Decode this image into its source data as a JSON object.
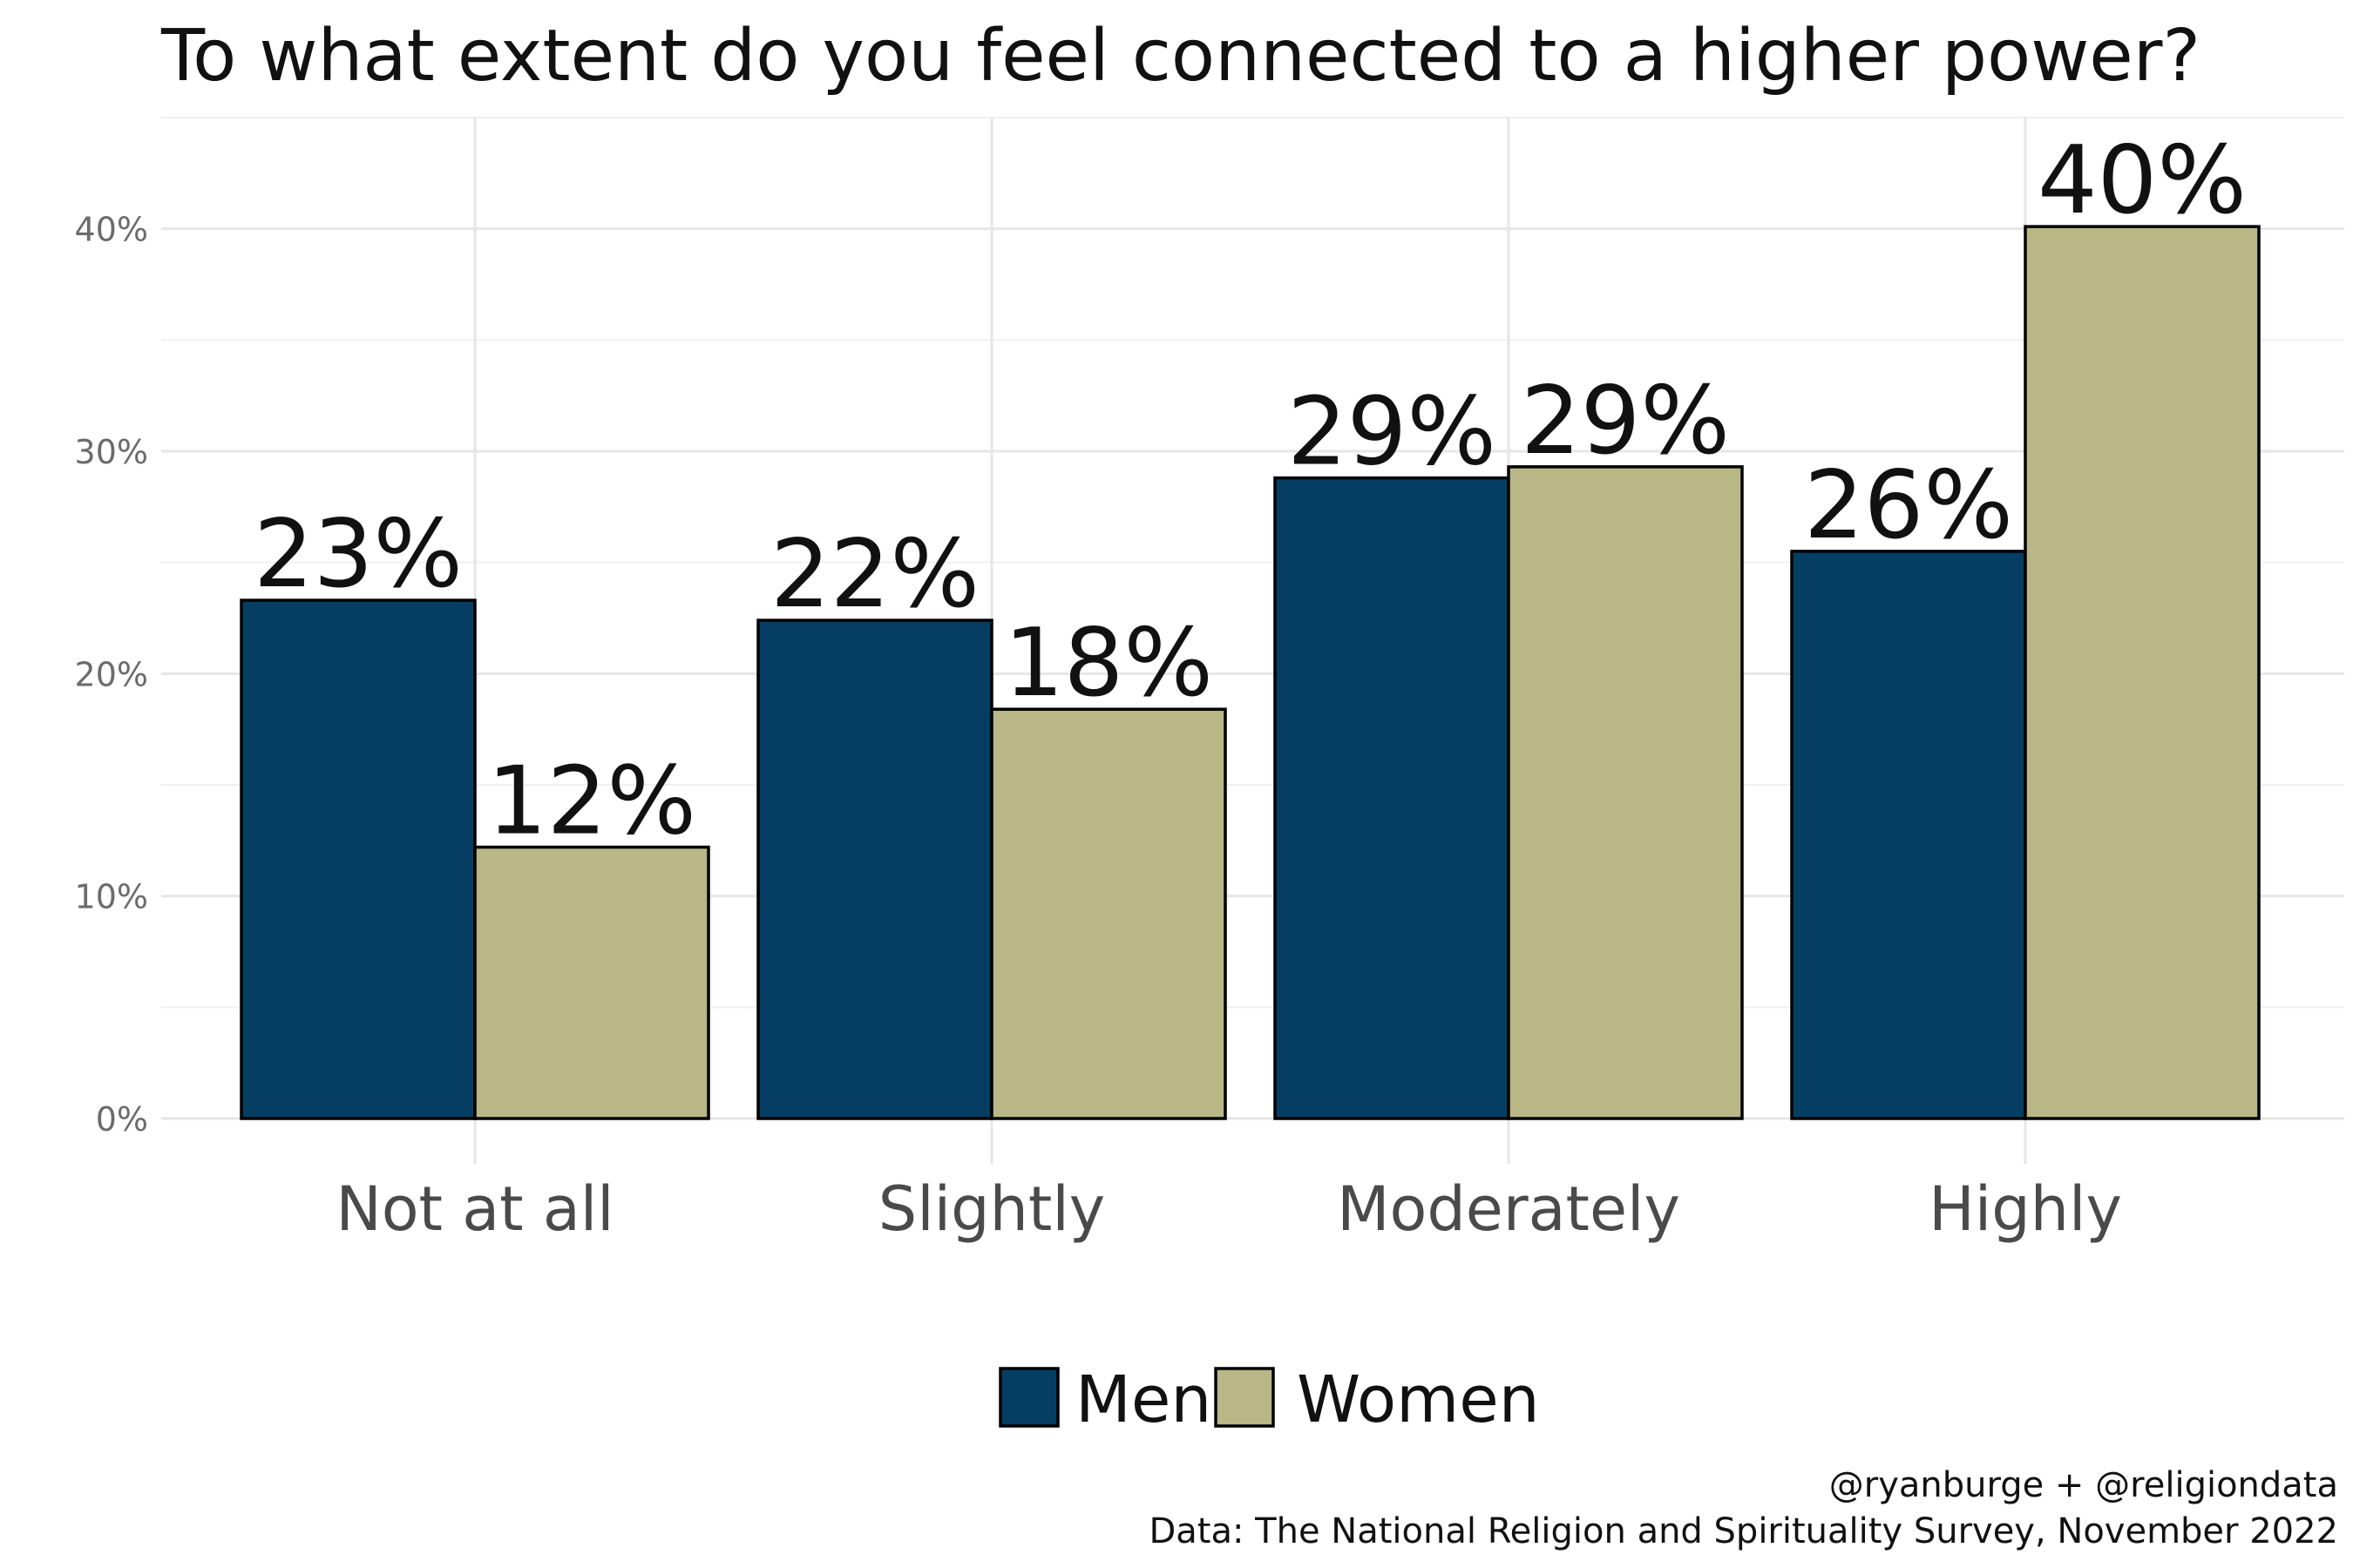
{
  "chart_data": {
    "type": "bar",
    "title": "To what extent do you feel connected to a higher power?",
    "xlabel": "",
    "ylabel": "",
    "categories": [
      "Not at all",
      "Slightly",
      "Moderately",
      "Highly"
    ],
    "series": [
      {
        "name": "Men",
        "color": "#053e62",
        "values": [
          0.233,
          0.224,
          0.288,
          0.255
        ],
        "labels": [
          "23%",
          "22%",
          "29%",
          "26%"
        ]
      },
      {
        "name": "Women",
        "color": "#b8b785",
        "values": [
          0.122,
          0.184,
          0.293,
          0.401
        ],
        "labels": [
          "12%",
          "18%",
          "29%",
          "40%"
        ]
      }
    ],
    "ylim": [
      0,
      0.45
    ],
    "yticks": [
      0,
      0.1,
      0.2,
      0.3,
      0.4
    ],
    "ytick_labels": [
      "0%",
      "10%",
      "20%",
      "30%",
      "40%"
    ],
    "grid": true,
    "legend_position": "bottom",
    "caption": [
      "@ryanburge + @religiondata",
      "Data: The National Religion and Spirituality Survey, November 2022"
    ]
  }
}
